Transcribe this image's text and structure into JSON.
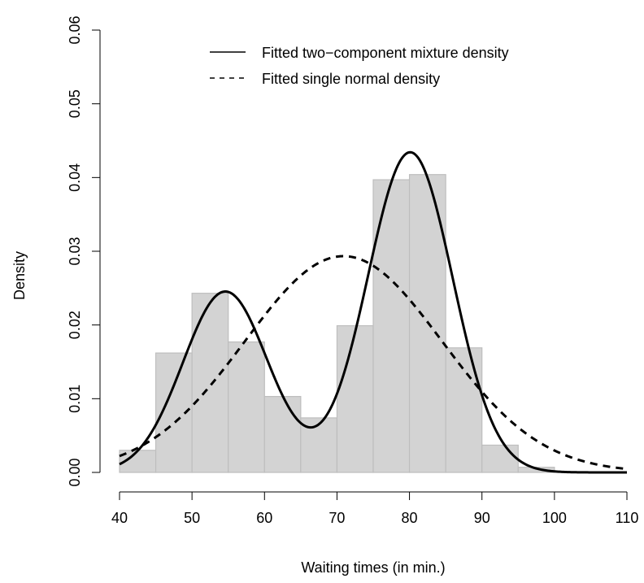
{
  "chart_data": {
    "type": "histogram",
    "xlabel": "Waiting times (in min.)",
    "ylabel": "Density",
    "xlim": [
      40,
      110
    ],
    "ylim": [
      0,
      0.06
    ],
    "x_ticks": [
      40,
      50,
      60,
      70,
      80,
      90,
      100,
      110
    ],
    "y_ticks": [
      "0.00",
      "0.01",
      "0.02",
      "0.03",
      "0.04",
      "0.05",
      "0.06"
    ],
    "bins": [
      {
        "from": 40,
        "to": 45,
        "density": 0.003
      },
      {
        "from": 45,
        "to": 50,
        "density": 0.0162
      },
      {
        "from": 50,
        "to": 55,
        "density": 0.0243
      },
      {
        "from": 55,
        "to": 60,
        "density": 0.0177
      },
      {
        "from": 60,
        "to": 65,
        "density": 0.0103
      },
      {
        "from": 65,
        "to": 70,
        "density": 0.0074
      },
      {
        "from": 70,
        "to": 75,
        "density": 0.0199
      },
      {
        "from": 75,
        "to": 80,
        "density": 0.0397
      },
      {
        "from": 80,
        "to": 85,
        "density": 0.0404
      },
      {
        "from": 85,
        "to": 90,
        "density": 0.0169
      },
      {
        "from": 90,
        "to": 95,
        "density": 0.0037
      },
      {
        "from": 95,
        "to": 100,
        "density": 0.0007
      }
    ],
    "series": [
      {
        "name": "Fitted two−component mixture density",
        "line_style": "solid",
        "components": [
          {
            "weight": 0.361,
            "mean": 54.6,
            "sd": 5.87
          },
          {
            "weight": 0.639,
            "mean": 80.1,
            "sd": 5.87
          }
        ]
      },
      {
        "name": "Fitted single normal density",
        "line_style": "dashed",
        "components": [
          {
            "weight": 1.0,
            "mean": 70.9,
            "sd": 13.6
          }
        ]
      }
    ],
    "legend_position": "top-right",
    "colors": {
      "bar_fill": "#d3d3d3",
      "bar_stroke": "#bebebe",
      "line": "#000000"
    },
    "grid": false
  }
}
